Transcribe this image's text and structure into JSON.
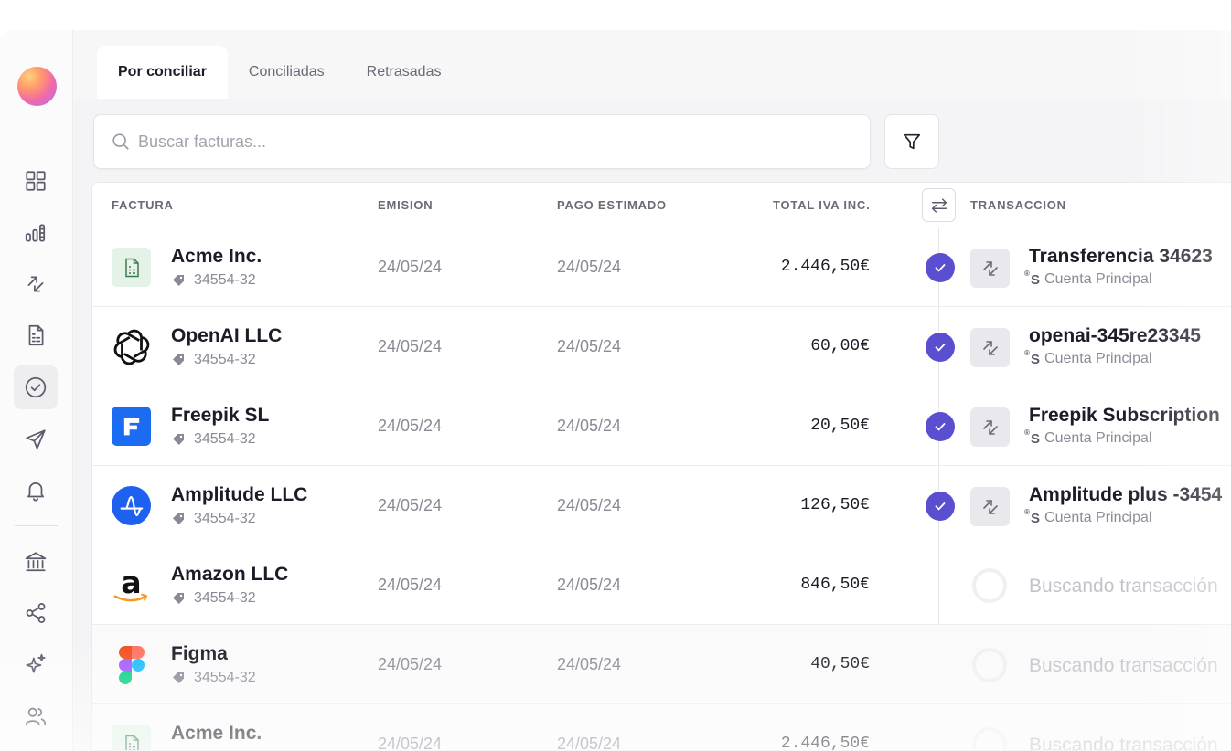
{
  "tabs": [
    {
      "label": "Por conciliar",
      "active": true
    },
    {
      "label": "Conciliadas",
      "active": false
    },
    {
      "label": "Retrasadas",
      "active": false
    }
  ],
  "search": {
    "placeholder": "Buscar facturas..."
  },
  "table": {
    "headers": {
      "factura": "FACTURA",
      "emision": "EMISION",
      "pago": "PAGO ESTIMADO",
      "total": "TOTAL IVA INC.",
      "transaccion": "TRANSACCION"
    },
    "searching_label": "Buscando transacción",
    "account_label": "Cuenta Principal",
    "bank_symbol": "S",
    "rows": [
      {
        "logo": "document-icon",
        "name": "Acme Inc.",
        "ref": "34554-32",
        "emision": "24/05/24",
        "pago": "24/05/24",
        "total": "2.446,50€",
        "matched": true,
        "transaction": "Transferencia 34623"
      },
      {
        "logo": "openai-logo",
        "name": "OpenAI LLC",
        "ref": "34554-32",
        "emision": "24/05/24",
        "pago": "24/05/24",
        "total": "60,00€",
        "matched": true,
        "transaction": "openai-345re23345"
      },
      {
        "logo": "freepik-logo",
        "name": "Freepik SL",
        "ref": "34554-32",
        "emision": "24/05/24",
        "pago": "24/05/24",
        "total": "20,50€",
        "matched": true,
        "transaction": "Freepik Subscription"
      },
      {
        "logo": "amplitude-logo",
        "name": "Amplitude LLC",
        "ref": "34554-32",
        "emision": "24/05/24",
        "pago": "24/05/24",
        "total": "126,50€",
        "matched": true,
        "transaction": "Amplitude plus -3454"
      },
      {
        "logo": "amazon-logo",
        "name": "Amazon LLC",
        "ref": "34554-32",
        "emision": "24/05/24",
        "pago": "24/05/24",
        "total": "846,50€",
        "matched": false,
        "transaction": ""
      },
      {
        "logo": "figma-logo",
        "name": "Figma",
        "ref": "34554-32",
        "emision": "24/05/24",
        "pago": "24/05/24",
        "total": "40,50€",
        "matched": false,
        "transaction": ""
      },
      {
        "logo": "document-icon",
        "name": "Acme Inc.",
        "ref": "",
        "emision": "24/05/24",
        "pago": "24/05/24",
        "total": "2.446,50€",
        "matched": false,
        "transaction": ""
      }
    ]
  },
  "sidebar": {
    "items": [
      {
        "icon": "dashboard-grid-icon"
      },
      {
        "icon": "bar-chart-icon"
      },
      {
        "icon": "transfer-arrows-icon"
      },
      {
        "icon": "invoice-icon"
      },
      {
        "icon": "check-circle-icon",
        "active": true
      },
      {
        "icon": "send-icon"
      },
      {
        "icon": "bell-icon"
      },
      {
        "icon": "bank-icon"
      },
      {
        "icon": "share-icon"
      },
      {
        "icon": "sparkles-icon"
      },
      {
        "icon": "users-icon"
      }
    ]
  },
  "colors": {
    "accent": "#5b4fd1",
    "freepik": "#1b6cf2",
    "amplitude": "#1e61f0",
    "amazon_smile": "#f79a1f"
  }
}
